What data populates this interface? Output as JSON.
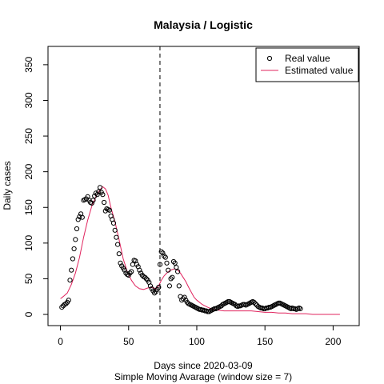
{
  "chart_data": {
    "type": "scatter",
    "title": "Malaysia / Logistic",
    "xlabel": "Days since 2020-03-09",
    "subtitle": "Simple Moving Avarage (window size = 7)",
    "ylabel": "Daily cases",
    "xlim": [
      0,
      210
    ],
    "ylim": [
      0,
      360
    ],
    "x_ticks": [
      0,
      50,
      100,
      150,
      200
    ],
    "y_ticks": [
      0,
      50,
      100,
      150,
      200,
      250,
      300,
      350
    ],
    "vline_x": 73,
    "grid": false,
    "legend_position": "top-right",
    "series": [
      {
        "name": "Real value",
        "style": "points",
        "color": "#000000",
        "x": [
          1,
          2,
          3,
          4,
          5,
          6,
          7,
          8,
          9,
          10,
          11,
          12,
          13,
          14,
          15,
          16,
          17,
          18,
          19,
          20,
          21,
          22,
          23,
          24,
          25,
          26,
          27,
          28,
          29,
          30,
          31,
          32,
          33,
          34,
          35,
          36,
          37,
          38,
          39,
          40,
          41,
          42,
          43,
          44,
          45,
          46,
          47,
          48,
          49,
          50,
          51,
          52,
          53,
          54,
          55,
          56,
          57,
          58,
          59,
          60,
          61,
          62,
          63,
          64,
          65,
          66,
          67,
          68,
          69,
          70,
          71,
          72,
          73,
          74,
          75,
          76,
          77,
          78,
          79,
          80,
          81,
          82,
          83,
          84,
          85,
          86,
          87,
          88,
          89,
          90,
          91,
          92,
          93,
          94,
          95,
          96,
          97,
          98,
          99,
          100,
          101,
          102,
          103,
          104,
          105,
          106,
          107,
          108,
          109,
          110,
          111,
          112,
          113,
          114,
          115,
          116,
          117,
          118,
          119,
          120,
          121,
          122,
          123,
          124,
          125,
          126,
          127,
          128,
          129,
          130,
          131,
          132,
          133,
          134,
          135,
          136,
          137,
          138,
          139,
          140,
          141,
          142,
          143,
          144,
          145,
          146,
          147,
          148,
          149,
          150,
          151,
          152,
          153,
          154,
          155,
          156,
          157,
          158,
          159,
          160,
          161,
          162,
          163,
          164,
          165,
          166,
          167,
          168,
          169,
          170,
          171,
          172,
          173,
          174,
          175,
          176
        ],
        "y": [
          10,
          12,
          14,
          15,
          17,
          20,
          48,
          62,
          78,
          92,
          105,
          120,
          133,
          137,
          141,
          136,
          160,
          161,
          162,
          165,
          160,
          157,
          156,
          160,
          166,
          170,
          168,
          172,
          178,
          171,
          168,
          157,
          145,
          148,
          147,
          146,
          138,
          133,
          128,
          118,
          108,
          98,
          85,
          72,
          68,
          65,
          62,
          58,
          56,
          55,
          58,
          60,
          70,
          76,
          75,
          70,
          67,
          62,
          58,
          55,
          53,
          52,
          50,
          48,
          45,
          40,
          36,
          33,
          30,
          32,
          35,
          38,
          70,
          88,
          86,
          82,
          80,
          72,
          62,
          40,
          50,
          52,
          74,
          72,
          66,
          60,
          40,
          25,
          20,
          22,
          24,
          20,
          17,
          15,
          14,
          13,
          12,
          11,
          10,
          9,
          8,
          7,
          7,
          6,
          6,
          5,
          5,
          4,
          4,
          5,
          6,
          7,
          8,
          8,
          9,
          10,
          11,
          12,
          14,
          15,
          16,
          17,
          18,
          18,
          17,
          16,
          15,
          14,
          12,
          11,
          12,
          12,
          13,
          14,
          14,
          13,
          14,
          15,
          16,
          17,
          18,
          17,
          15,
          13,
          11,
          10,
          9,
          9,
          8,
          8,
          9,
          9,
          10,
          10,
          11,
          12,
          13,
          14,
          15,
          16,
          16,
          15,
          14,
          13,
          12,
          11,
          10,
          9,
          8,
          9,
          8,
          8,
          7,
          8,
          9,
          8
        ],
        "marker": "open circle"
      },
      {
        "name": "Estimated value",
        "style": "line",
        "color": "#E0245E",
        "x": [
          0,
          2,
          5,
          8,
          11,
          14,
          17,
          20,
          23,
          26,
          29,
          31,
          33,
          35,
          37,
          40,
          43,
          46,
          49,
          52,
          55,
          58,
          61,
          64,
          67,
          70,
          72,
          74,
          76,
          78,
          80,
          82,
          84,
          86,
          88,
          90,
          92,
          94,
          96,
          98,
          100,
          104,
          108,
          112,
          116,
          120,
          125,
          130,
          135,
          140,
          145,
          150,
          155,
          160,
          165,
          170,
          175,
          180,
          185,
          190,
          195,
          200,
          205
        ],
        "y": [
          22,
          25,
          30,
          42,
          58,
          80,
          108,
          132,
          152,
          165,
          175,
          179,
          176,
          167,
          150,
          130,
          105,
          78,
          60,
          48,
          40,
          36,
          35,
          37,
          38,
          36,
          40,
          48,
          54,
          58,
          61,
          63,
          64,
          62,
          58,
          52,
          46,
          38,
          31,
          24,
          20,
          14,
          10,
          7,
          6,
          5,
          5,
          5,
          5,
          5,
          4,
          3,
          3,
          2,
          2,
          1,
          1,
          1,
          0,
          0,
          0,
          0,
          0
        ]
      }
    ]
  }
}
